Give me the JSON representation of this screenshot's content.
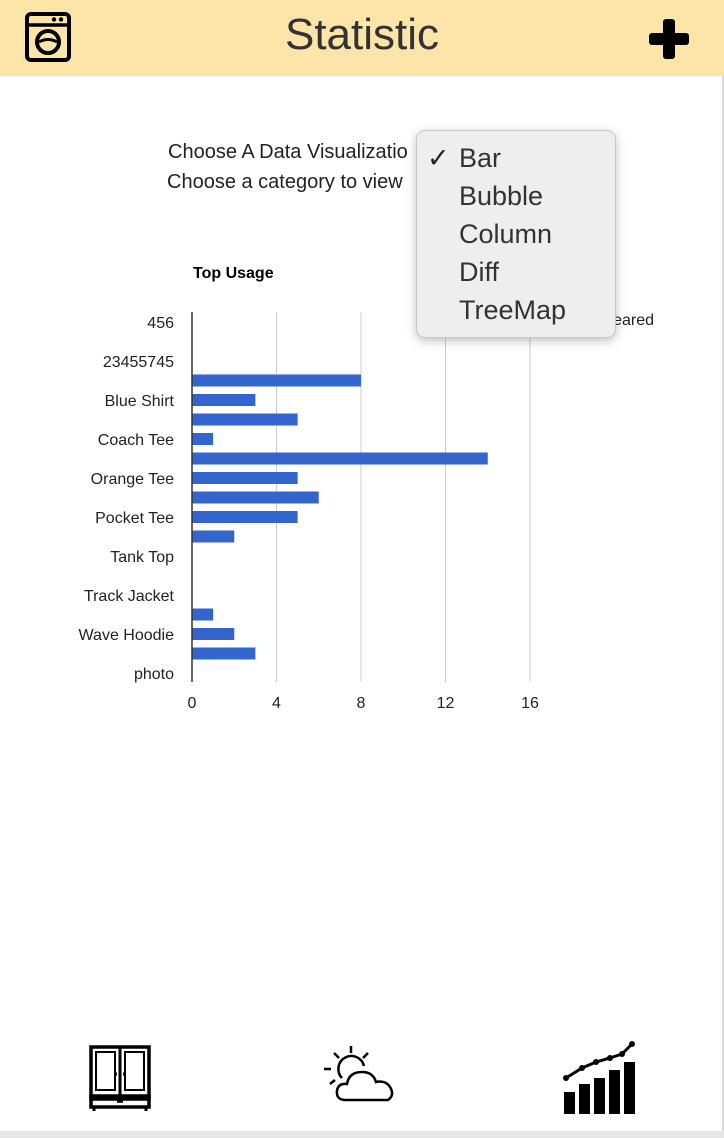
{
  "header": {
    "title": "Statistic",
    "left_icon": "washing-machine-icon",
    "right_icon": "plus-icon"
  },
  "prompts": {
    "visualization_label": "Choose A Data Visualizatio",
    "category_label": "Choose a category to view"
  },
  "visualization_menu": {
    "items": [
      {
        "label": "Bar",
        "checked": true
      },
      {
        "label": "Bubble",
        "checked": false
      },
      {
        "label": "Column",
        "checked": false
      },
      {
        "label": "Diff",
        "checked": false
      },
      {
        "label": "TreeMap",
        "checked": false
      }
    ]
  },
  "legend_partial": "eared",
  "chart_data": {
    "type": "bar",
    "orientation": "horizontal",
    "title": "Top Usage",
    "bar_color": "#3366cc",
    "categories": [
      "456",
      "23455745",
      "Blue Shirt",
      "Coach Tee",
      "Orange Tee",
      "Pocket Tee",
      "Tank Top",
      "Track Jacket",
      "Wave Hoodie",
      "photo"
    ],
    "bars": [
      {
        "y": 1.5,
        "value": 8
      },
      {
        "y": 2.0,
        "value": 3
      },
      {
        "y": 2.5,
        "value": 5
      },
      {
        "y": 3.0,
        "value": 1
      },
      {
        "y": 3.5,
        "value": 14
      },
      {
        "y": 4.0,
        "value": 5
      },
      {
        "y": 4.5,
        "value": 6
      },
      {
        "y": 5.0,
        "value": 5
      },
      {
        "y": 5.5,
        "value": 2
      },
      {
        "y": 7.5,
        "value": 1
      },
      {
        "y": 8.0,
        "value": 2
      },
      {
        "y": 8.5,
        "value": 3
      }
    ],
    "x_ticks": [
      0,
      4,
      8,
      12,
      16
    ],
    "xlim": [
      0,
      20
    ],
    "grid": true
  },
  "bottom_nav": {
    "items": [
      {
        "icon": "wardrobe-icon"
      },
      {
        "icon": "partly-cloudy-icon"
      },
      {
        "icon": "statistics-chart-icon"
      }
    ]
  }
}
